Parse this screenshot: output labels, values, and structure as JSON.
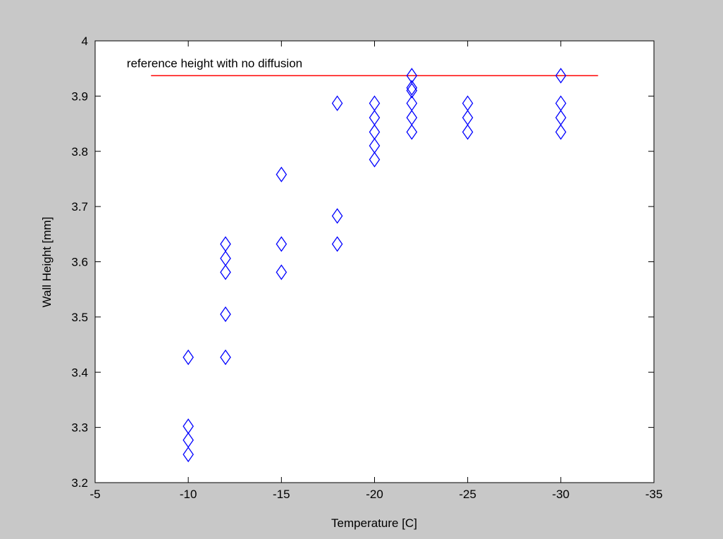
{
  "chart_data": {
    "type": "scatter",
    "title": "",
    "xlabel": "Temperature [C]",
    "ylabel": "Wall Height [mm]",
    "xlim": [
      -5,
      -35
    ],
    "ylim": [
      3.2,
      4.0
    ],
    "x_reversed": true,
    "x_ticks": [
      -5,
      -10,
      -15,
      -20,
      -25,
      -30,
      -35
    ],
    "x_tick_labels": [
      "-5",
      "-10",
      "-15",
      "-20",
      "-25",
      "-30",
      "-35"
    ],
    "y_ticks": [
      3.2,
      3.3,
      3.4,
      3.5,
      3.6,
      3.7,
      3.8,
      3.9,
      4.0
    ],
    "y_tick_labels": [
      "3.2",
      "3.3",
      "3.4",
      "3.5",
      "3.6",
      "3.7",
      "3.8",
      "3.9",
      "4"
    ],
    "grid": false,
    "series": [
      {
        "marker": "diamond",
        "color": "#0000ff",
        "points": [
          {
            "x": -10,
            "y": 3.427
          },
          {
            "x": -10,
            "y": 3.302
          },
          {
            "x": -10,
            "y": 3.277
          },
          {
            "x": -10,
            "y": 3.251
          },
          {
            "x": -12,
            "y": 3.632
          },
          {
            "x": -12,
            "y": 3.606
          },
          {
            "x": -12,
            "y": 3.581
          },
          {
            "x": -12,
            "y": 3.505
          },
          {
            "x": -12,
            "y": 3.427
          },
          {
            "x": -15,
            "y": 3.758
          },
          {
            "x": -15,
            "y": 3.632
          },
          {
            "x": -15,
            "y": 3.581
          },
          {
            "x": -18,
            "y": 3.887
          },
          {
            "x": -18,
            "y": 3.683
          },
          {
            "x": -18,
            "y": 3.632
          },
          {
            "x": -20,
            "y": 3.887
          },
          {
            "x": -20,
            "y": 3.861
          },
          {
            "x": -20,
            "y": 3.835
          },
          {
            "x": -20,
            "y": 3.81
          },
          {
            "x": -20,
            "y": 3.785
          },
          {
            "x": -22,
            "y": 3.937
          },
          {
            "x": -22,
            "y": 3.915
          },
          {
            "x": -22,
            "y": 3.91
          },
          {
            "x": -22,
            "y": 3.887
          },
          {
            "x": -22,
            "y": 3.861
          },
          {
            "x": -22,
            "y": 3.835
          },
          {
            "x": -25,
            "y": 3.887
          },
          {
            "x": -25,
            "y": 3.861
          },
          {
            "x": -25,
            "y": 3.835
          },
          {
            "x": -30,
            "y": 3.937
          },
          {
            "x": -30,
            "y": 3.887
          },
          {
            "x": -30,
            "y": 3.861
          },
          {
            "x": -30,
            "y": 3.835
          }
        ]
      }
    ],
    "reference_line": {
      "color": "#ff0000",
      "y": 3.937,
      "x_start": -8,
      "x_end": -32
    },
    "annotations": [
      {
        "text": "reference height with no diffusion",
        "x": -6.7,
        "y": 3.952
      }
    ]
  }
}
